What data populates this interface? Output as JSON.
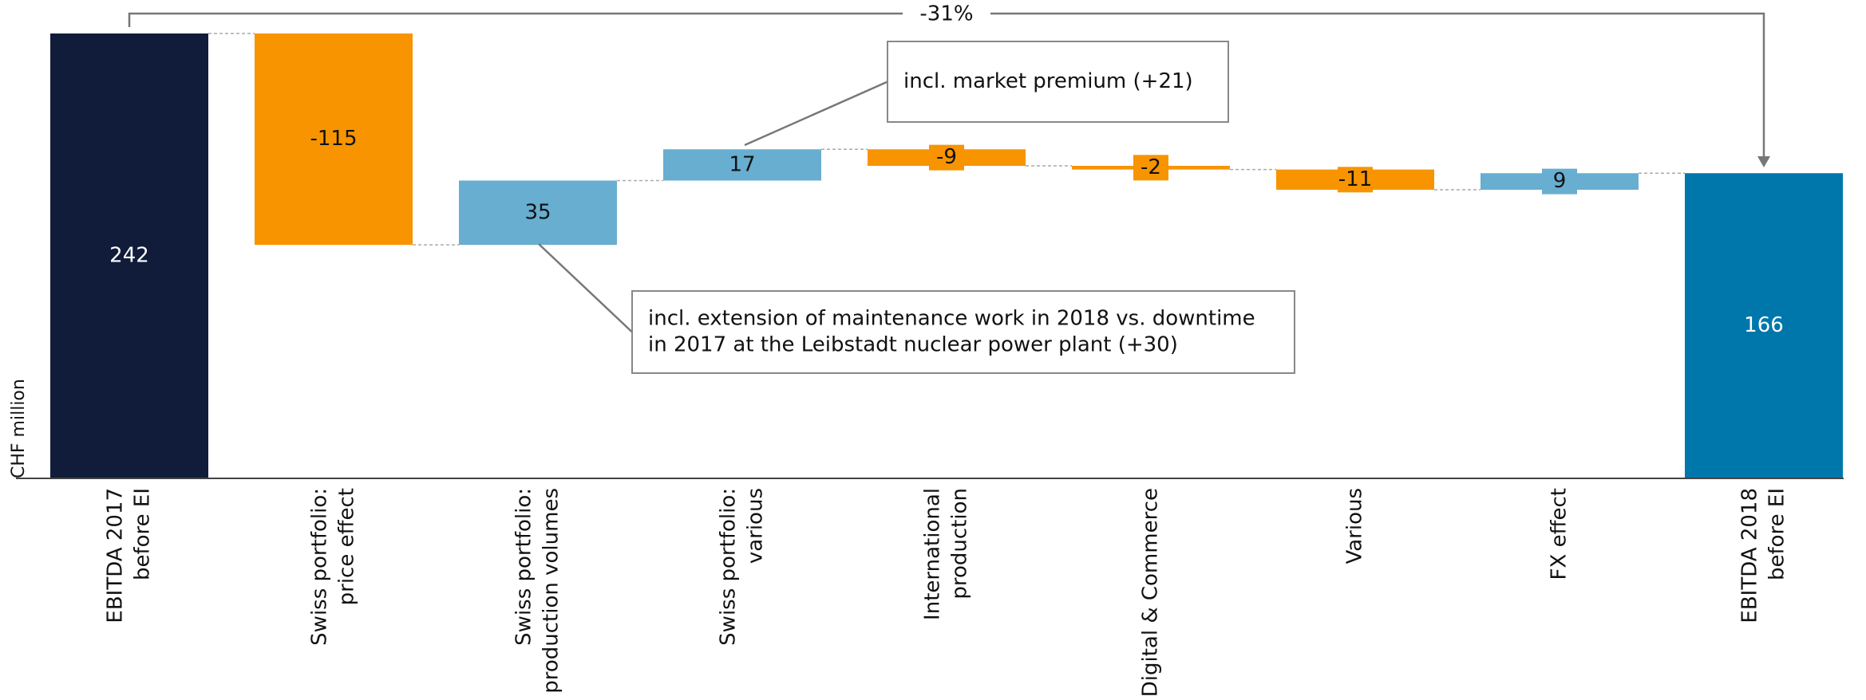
{
  "chart_data": {
    "type": "waterfall",
    "y_axis_label": "CHF million",
    "categories": [
      [
        "EBITDA 2017",
        "before EI"
      ],
      [
        "Swiss portfolio:",
        "price effect"
      ],
      [
        "Swiss portfolio:",
        "production volumes"
      ],
      [
        "Swiss portfolio:",
        "various"
      ],
      [
        "International",
        "production"
      ],
      [
        "Digital & Commerce"
      ],
      [
        "Various"
      ],
      [
        "FX effect"
      ],
      [
        "EBITDA 2018",
        "before EI"
      ]
    ],
    "values": [
      242,
      -115,
      35,
      17,
      -9,
      -2,
      -11,
      9,
      166
    ],
    "kinds": [
      "total",
      "delta",
      "delta",
      "delta",
      "delta",
      "delta",
      "delta",
      "delta",
      "total"
    ],
    "colors": [
      "#111c3a",
      "#f79400",
      "#68aed0",
      "#68aed0",
      "#f79400",
      "#f79400",
      "#f79400",
      "#68aed0",
      "#0077aa"
    ],
    "ylim": [
      0,
      242
    ],
    "change_label": "-31%",
    "annotations": [
      {
        "lines": [
          "incl. market premium (+21)"
        ],
        "category": 3
      },
      {
        "lines": [
          "incl. extension of maintenance work in 2018 vs. downtime",
          "in 2017 at the Leibstadt nuclear power plant (+30)"
        ],
        "category": 2
      }
    ]
  }
}
